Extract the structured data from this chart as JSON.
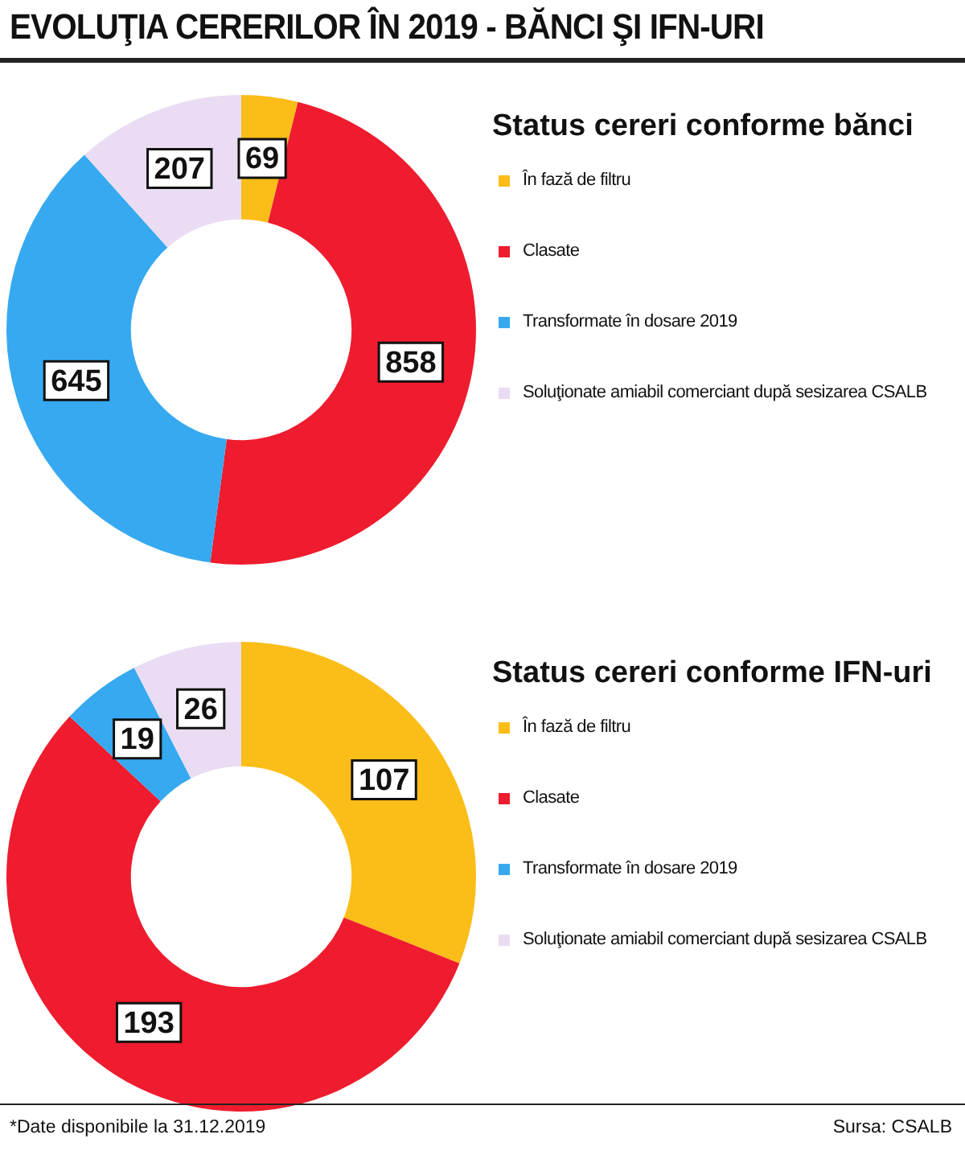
{
  "chart_data": [
    {
      "type": "donut",
      "title": "EVOLUŢIA CERERILOR ÎN 2019 - BĂNCI ŞI IFN-URI",
      "legend_title": "Status cereri conforme bănci",
      "categories": [
        "În fază de filtru",
        "Clasate",
        "Transformate în dosare 2019",
        "Soluţionate amiabil comerciant după sesizarea CSALB"
      ],
      "values": [
        69,
        858,
        645,
        207
      ],
      "colors": [
        "#fbbd17",
        "#ee1c2e",
        "#36a9f0",
        "#eadcf3"
      ],
      "data_labels": true,
      "legend": "right"
    },
    {
      "type": "donut",
      "legend_title": "Status cereri conforme IFN-uri",
      "categories": [
        "În fază de filtru",
        "Clasate",
        "Transformate în dosare 2019",
        "Soluţionate amiabil comerciant după sesizarea CSALB"
      ],
      "values": [
        107,
        193,
        19,
        26
      ],
      "colors": [
        "#fbbd17",
        "#ee1c2e",
        "#36a9f0",
        "#eadcf3"
      ],
      "data_labels": true,
      "legend": "right",
      "annotations": [
        "*Date disponibile la 31.12.2019",
        "Sursa: CSALB"
      ]
    }
  ]
}
